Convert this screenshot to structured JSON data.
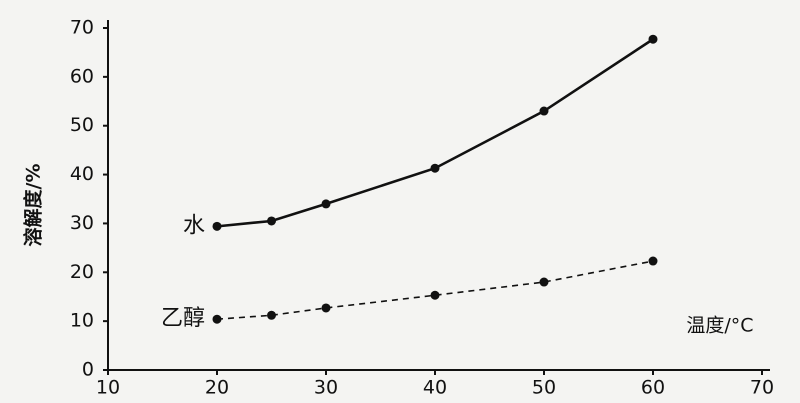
{
  "chart_data": {
    "type": "line",
    "xlabel": "温度/°C",
    "ylabel": "溶解度/%",
    "x": [
      20,
      25,
      30,
      40,
      50,
      60
    ],
    "series": [
      {
        "name": "水",
        "color": "#111111",
        "line_style": "solid",
        "values": [
          29.4,
          30.5,
          34,
          41.3,
          53,
          67.7
        ]
      },
      {
        "name": "乙醇",
        "color": "#111111",
        "line_style": "dashed",
        "values": [
          10.4,
          11.2,
          12.7,
          15.3,
          18,
          22.3
        ]
      }
    ],
    "xlim": [
      10,
      70
    ],
    "xticks": [
      10,
      20,
      30,
      40,
      50,
      60,
      70
    ],
    "ylim": [
      0,
      70
    ],
    "yticks": [
      0,
      10,
      20,
      30,
      40,
      50,
      60,
      70
    ],
    "grid": false
  }
}
